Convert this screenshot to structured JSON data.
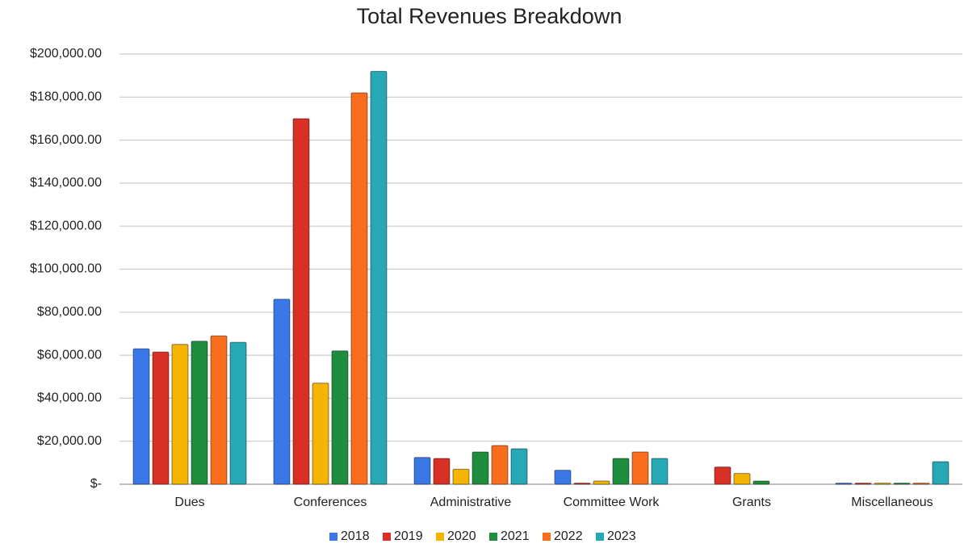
{
  "chart_data": {
    "type": "bar",
    "title": "Total Revenues Breakdown",
    "categories": [
      "Dues",
      "Conferences",
      "Administrative",
      "Committee Work",
      "Grants",
      "Miscellaneous"
    ],
    "series": [
      {
        "name": "2018",
        "color": "#3b78e7",
        "values": [
          63000,
          86000,
          12500,
          6500,
          0,
          500
        ]
      },
      {
        "name": "2019",
        "color": "#d93025",
        "values": [
          61500,
          170000,
          12000,
          500,
          8000,
          500
        ]
      },
      {
        "name": "2020",
        "color": "#f4b400",
        "values": [
          65000,
          47000,
          7000,
          1500,
          5000,
          500
        ]
      },
      {
        "name": "2021",
        "color": "#1e8e3e",
        "values": [
          66500,
          62000,
          15000,
          12000,
          1500,
          500
        ]
      },
      {
        "name": "2022",
        "color": "#fa6d1c",
        "values": [
          69000,
          182000,
          18000,
          15000,
          0,
          500
        ]
      },
      {
        "name": "2023",
        "color": "#26a8b5",
        "values": [
          66000,
          192000,
          16500,
          12000,
          0,
          10500
        ]
      }
    ],
    "ylim": [
      0,
      200000
    ],
    "yticks": [
      {
        "value": 0,
        "label": "$-"
      },
      {
        "value": 20000,
        "label": "$20,000.00"
      },
      {
        "value": 40000,
        "label": "$40,000.00"
      },
      {
        "value": 60000,
        "label": "$60,000.00"
      },
      {
        "value": 80000,
        "label": "$80,000.00"
      },
      {
        "value": 100000,
        "label": "$100,000.00"
      },
      {
        "value": 120000,
        "label": "$120,000.00"
      },
      {
        "value": 140000,
        "label": "$140,000.00"
      },
      {
        "value": 160000,
        "label": "$160,000.00"
      },
      {
        "value": 180000,
        "label": "$180,000.00"
      },
      {
        "value": 200000,
        "label": "$200,000.00"
      }
    ],
    "grid": true,
    "legend": "bottom"
  }
}
